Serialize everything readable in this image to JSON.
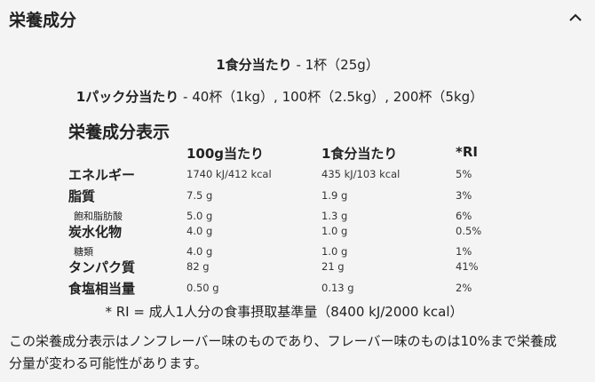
{
  "header": {
    "title": "栄養成分"
  },
  "servings": [
    {
      "label": "1食分当たり",
      "text": " - 1杯（25g）"
    },
    {
      "label": "1パック分当たり",
      "text": " - 40杯（1kg）, 100杯（2.5kg）, 200杯（5kg）"
    }
  ],
  "table": {
    "title": "栄養成分表示",
    "columns": [
      "100g当たり",
      "1食分当たり",
      "*RI"
    ],
    "rows": [
      {
        "label": "エネルギー",
        "sub": false,
        "values": [
          "1740 kJ/412 kcal",
          "435 kJ/103 kcal",
          "5%"
        ]
      },
      {
        "label": "脂質",
        "sub": false,
        "values": [
          "7.5 g",
          "1.9 g",
          "3%"
        ]
      },
      {
        "label": "飽和脂肪酸",
        "sub": true,
        "values": [
          "5.0 g",
          "1.3 g",
          "6%"
        ]
      },
      {
        "label": "炭水化物",
        "sub": false,
        "values": [
          "4.0 g",
          "1.0 g",
          "0.5%"
        ]
      },
      {
        "label": "糖類",
        "sub": true,
        "values": [
          "4.0 g",
          "1.0 g",
          "1%"
        ]
      },
      {
        "label": "タンパク質",
        "sub": false,
        "values": [
          "82 g",
          "21 g",
          "41%"
        ]
      },
      {
        "label": "食塩相当量",
        "sub": false,
        "values": [
          "0.50 g",
          "0.13 g",
          "2%"
        ]
      }
    ],
    "footnote": "* RI = 成人1人分の食事摂取基準量（8400 kJ/2000 kcal）"
  },
  "note": "この栄養成分表示はノンフレーバー味のものであり、フレーバー味のものは10%まで栄養成分量が変わる可能性があります。"
}
